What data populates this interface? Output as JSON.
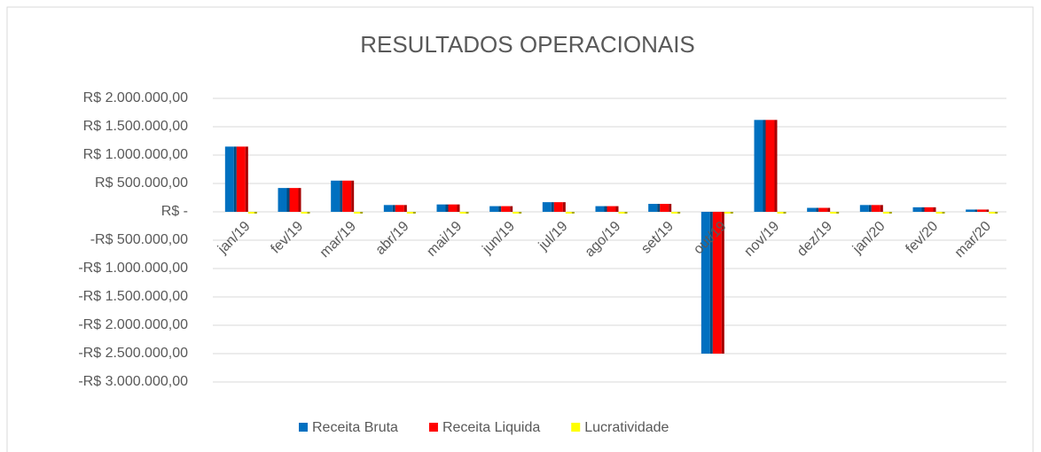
{
  "chart_data": {
    "type": "bar",
    "title": "RESULTADOS OPERACIONAIS",
    "categories": [
      "jan/19",
      "fev/19",
      "mar/19",
      "abr/19",
      "mai/19",
      "jun/19",
      "jul/19",
      "ago/19",
      "set/19",
      "out/19",
      "nov/19",
      "dez/19",
      "jan/20",
      "fev/20",
      "mar/20"
    ],
    "series": [
      {
        "name": "Receita Bruta",
        "color": "#0070c0",
        "values": [
          1150000,
          420000,
          550000,
          120000,
          130000,
          100000,
          170000,
          100000,
          140000,
          -2500000,
          1620000,
          70000,
          120000,
          80000,
          40000
        ]
      },
      {
        "name": "Receita Liquida",
        "color": "#ff0000",
        "values": [
          1150000,
          420000,
          550000,
          120000,
          130000,
          100000,
          170000,
          100000,
          140000,
          -2500000,
          1620000,
          70000,
          120000,
          80000,
          40000
        ]
      },
      {
        "name": "Lucratividade",
        "color": "#ffff00",
        "values": [
          0,
          0,
          0,
          0,
          0,
          0,
          0,
          0,
          0,
          0,
          0,
          0,
          0,
          0,
          0
        ]
      }
    ],
    "ylim": [
      -3000000,
      2000000
    ],
    "yticks": [
      {
        "value": -3000000,
        "label": "-R$ 3.000.000,00"
      },
      {
        "value": -2500000,
        "label": "-R$ 2.500.000,00"
      },
      {
        "value": -2000000,
        "label": "-R$ 2.000.000,00"
      },
      {
        "value": -1500000,
        "label": "-R$ 1.500.000,00"
      },
      {
        "value": -1000000,
        "label": "-R$ 1.000.000,00"
      },
      {
        "value": -500000,
        "label": "-R$ 500.000,00"
      },
      {
        "value": 0,
        "label": "R$ -"
      },
      {
        "value": 500000,
        "label": "R$ 500.000,00"
      },
      {
        "value": 1000000,
        "label": "R$ 1.000.000,00"
      },
      {
        "value": 1500000,
        "label": "R$ 1.500.000,00"
      },
      {
        "value": 2000000,
        "label": "R$ 2.000.000,00"
      }
    ],
    "grid": true,
    "legend": "bottom"
  }
}
